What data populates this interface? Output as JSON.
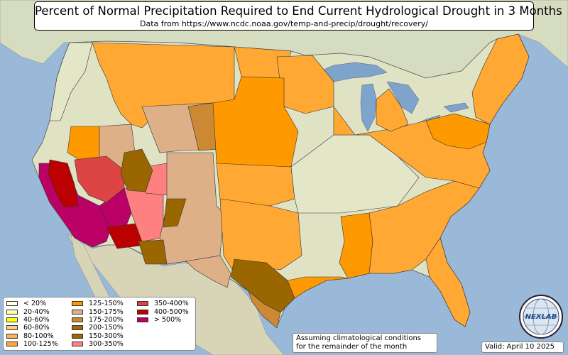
{
  "header": {
    "title": "Percent of Normal Precipitation Required to End Current Hydrological Drought in 3 Months",
    "subtitle": "Data from https://www.ncdc.noaa.gov/temp-and-precip/drought/recovery/"
  },
  "legend": {
    "items": [
      {
        "label": "< 20%",
        "color": "#ffffe8"
      },
      {
        "label": "20-40%",
        "color": "#ffffb0"
      },
      {
        "label": "40-60%",
        "color": "#ffff00"
      },
      {
        "label": "60-80%",
        "color": "#fdd08a"
      },
      {
        "label": "80-100%",
        "color": "#fbb25e"
      },
      {
        "label": "100-125%",
        "color": "#ffa833"
      },
      {
        "label": "125-150%",
        "color": "#ff9900"
      },
      {
        "label": "150-175%",
        "color": "#ddb088"
      },
      {
        "label": "175-200%",
        "color": "#cc8833"
      },
      {
        "label": "200-150%",
        "color": "#aa6600"
      },
      {
        "label": "150-300%",
        "color": "#996600"
      },
      {
        "label": "300-350%",
        "color": "#ff8080"
      },
      {
        "label": "350-400%",
        "color": "#dd4444"
      },
      {
        "label": "400-500%",
        "color": "#bb0000"
      },
      {
        "label": "> 500%",
        "color": "#bb0066"
      }
    ]
  },
  "footer": {
    "note_line1": "Assuming climatological conditions",
    "note_line2": "for the remainder of the month",
    "valid": "Valid: April 10 2025"
  },
  "logo": {
    "text": "NEXLAB",
    "icon": "globe-logo-icon"
  },
  "colors": {
    "ocean": "#9ab8d8",
    "land": "#dfe3c4",
    "canada": "#d6dcc0",
    "mexico": "#d8d4b8",
    "lakes": "#7ea4cc"
  }
}
